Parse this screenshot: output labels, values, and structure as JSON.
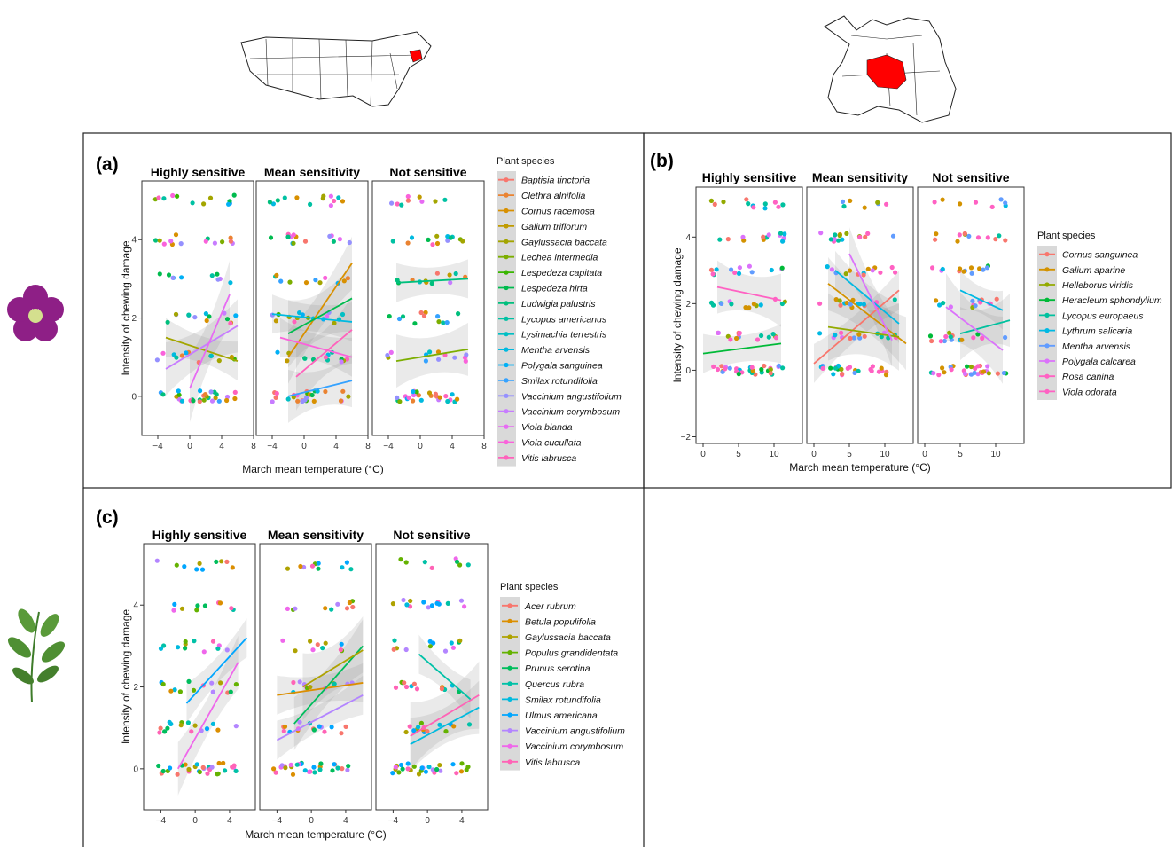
{
  "chart_data": [
    {
      "type": "scatter",
      "panel_label": "(a)",
      "facets": [
        "Highly sensitive",
        "Mean sensitivity",
        "Not sensitive"
      ],
      "xlabel": "March mean temperature (°C)",
      "ylabel": "Intensity of chewing damage",
      "xlim": [
        -6,
        8
      ],
      "ylim": [
        -1,
        5.5
      ],
      "x_ticks": [
        -4,
        0,
        4,
        8
      ],
      "y_ticks": [
        0,
        2,
        4
      ],
      "legend_title": "Plant species",
      "legend_position": "right",
      "grid": false,
      "series": [
        {
          "name": "Baptisia tinctoria",
          "color": "#F8766D"
        },
        {
          "name": "Clethra alnifolia",
          "color": "#EA8331"
        },
        {
          "name": "Cornus racemosa",
          "color": "#D89000"
        },
        {
          "name": "Galium triflorum",
          "color": "#C09B00"
        },
        {
          "name": "Gaylussacia baccata",
          "color": "#A3A500"
        },
        {
          "name": "Lechea intermedia",
          "color": "#7CAE00"
        },
        {
          "name": "Lespedeza capitata",
          "color": "#39B600"
        },
        {
          "name": "Lespedeza hirta",
          "color": "#00BB4E"
        },
        {
          "name": "Ludwigia palustris",
          "color": "#00BF7D"
        },
        {
          "name": "Lycopus americanus",
          "color": "#00C1A3"
        },
        {
          "name": "Lysimachia terrestris",
          "color": "#00BFC4"
        },
        {
          "name": "Mentha arvensis",
          "color": "#00BAE0"
        },
        {
          "name": "Polygala sanguinea",
          "color": "#00B0F6"
        },
        {
          "name": "Smilax rotundifolia",
          "color": "#35A2FF"
        },
        {
          "name": "Vaccinium angustifolium",
          "color": "#9590FF"
        },
        {
          "name": "Vaccinium corymbosum",
          "color": "#C77CFF"
        },
        {
          "name": "Viola blanda",
          "color": "#E76BF3"
        },
        {
          "name": "Viola cucullata",
          "color": "#FA62DB"
        },
        {
          "name": "Vitis labrusca",
          "color": "#FF62BC"
        }
      ],
      "trend_lines": [
        {
          "facet": 0,
          "color": "#A3A500",
          "from": [
            -3,
            1.5
          ],
          "to": [
            6,
            0.9
          ]
        },
        {
          "facet": 0,
          "color": "#C77CFF",
          "from": [
            -3,
            0.7
          ],
          "to": [
            6,
            1.8
          ]
        },
        {
          "facet": 0,
          "color": "#E76BF3",
          "from": [
            0,
            0.2
          ],
          "to": [
            5,
            2.6
          ]
        },
        {
          "facet": 1,
          "color": "#00BAE0",
          "from": [
            -4,
            2.1
          ],
          "to": [
            6,
            1.9
          ]
        },
        {
          "facet": 1,
          "color": "#D89000",
          "from": [
            -2,
            1.0
          ],
          "to": [
            6,
            3.4
          ]
        },
        {
          "facet": 1,
          "color": "#00BB4E",
          "from": [
            -2,
            1.6
          ],
          "to": [
            6,
            2.5
          ]
        },
        {
          "facet": 1,
          "color": "#FA62DB",
          "from": [
            -3,
            1.5
          ],
          "to": [
            6,
            1.0
          ]
        },
        {
          "facet": 1,
          "color": "#35A2FF",
          "from": [
            -2,
            0.0
          ],
          "to": [
            6,
            0.4
          ]
        },
        {
          "facet": 1,
          "color": "#FF62BC",
          "from": [
            -1,
            0.5
          ],
          "to": [
            6,
            1.7
          ]
        },
        {
          "facet": 2,
          "color": "#00BF7D",
          "from": [
            -3,
            2.9
          ],
          "to": [
            6,
            3.0
          ]
        },
        {
          "facet": 2,
          "color": "#7CAE00",
          "from": [
            -3,
            0.9
          ],
          "to": [
            6,
            1.2
          ]
        }
      ]
    },
    {
      "type": "scatter",
      "panel_label": "(b)",
      "facets": [
        "Highly sensitive",
        "Mean sensitivity",
        "Not sensitive"
      ],
      "xlabel": "March mean temperature (°C)",
      "ylabel": "Intensity of chewing damage",
      "xlim": [
        -1,
        14
      ],
      "ylim": [
        -2.2,
        5.5
      ],
      "x_ticks": [
        0,
        5,
        10
      ],
      "y_ticks": [
        -2,
        0,
        2,
        4
      ],
      "legend_title": "Plant species",
      "legend_position": "right",
      "grid": false,
      "series": [
        {
          "name": "Cornus sanguinea",
          "color": "#F8766D"
        },
        {
          "name": "Galium aparine",
          "color": "#D39200"
        },
        {
          "name": "Helleborus viridis",
          "color": "#93AA00"
        },
        {
          "name": "Heracleum sphondylium",
          "color": "#00BA38"
        },
        {
          "name": "Lycopus europaeus",
          "color": "#00C19F"
        },
        {
          "name": "Lythrum salicaria",
          "color": "#00B9E3"
        },
        {
          "name": "Mentha arvensis",
          "color": "#619CFF"
        },
        {
          "name": "Polygala calcarea",
          "color": "#DB72FB"
        },
        {
          "name": "Rosa canina",
          "color": "#FF61C3"
        },
        {
          "name": "Viola odorata",
          "color": "#FF61C3"
        }
      ],
      "trend_lines": [
        {
          "facet": 0,
          "color": "#00BA38",
          "from": [
            0,
            0.5
          ],
          "to": [
            11,
            0.8
          ]
        },
        {
          "facet": 0,
          "color": "#FF61C3",
          "from": [
            2,
            2.5
          ],
          "to": [
            11,
            2.1
          ]
        },
        {
          "facet": 1,
          "color": "#F8766D",
          "from": [
            0,
            0.2
          ],
          "to": [
            12,
            2.4
          ]
        },
        {
          "facet": 1,
          "color": "#D39200",
          "from": [
            2,
            2.6
          ],
          "to": [
            13,
            0.8
          ]
        },
        {
          "facet": 1,
          "color": "#93AA00",
          "from": [
            2,
            1.3
          ],
          "to": [
            12,
            1.0
          ]
        },
        {
          "facet": 1,
          "color": "#00B9E3",
          "from": [
            3,
            3.0
          ],
          "to": [
            12,
            1.4
          ]
        },
        {
          "facet": 1,
          "color": "#DB72FB",
          "from": [
            5,
            3.5
          ],
          "to": [
            11,
            0.9
          ]
        },
        {
          "facet": 2,
          "color": "#00B9E3",
          "from": [
            5,
            2.4
          ],
          "to": [
            11,
            1.8
          ]
        },
        {
          "facet": 2,
          "color": "#00C19F",
          "from": [
            5,
            1.1
          ],
          "to": [
            12,
            1.5
          ]
        },
        {
          "facet": 2,
          "color": "#DB72FB",
          "from": [
            3,
            1.9
          ],
          "to": [
            11,
            0.6
          ]
        }
      ]
    },
    {
      "type": "scatter",
      "panel_label": "(c)",
      "facets": [
        "Highly sensitive",
        "Mean sensitivity",
        "Not sensitive"
      ],
      "xlabel": "March mean temperature (°C)",
      "ylabel": "Intensity of chewing damage",
      "xlim": [
        -6,
        7
      ],
      "ylim": [
        -1,
        5.5
      ],
      "x_ticks": [
        -4,
        0,
        4
      ],
      "y_ticks": [
        0,
        2,
        4
      ],
      "legend_title": "Plant species",
      "legend_position": "right",
      "grid": false,
      "series": [
        {
          "name": "Acer rubrum",
          "color": "#F8766D"
        },
        {
          "name": "Betula populifolia",
          "color": "#DB8E00"
        },
        {
          "name": "Gaylussacia baccata",
          "color": "#AEA200"
        },
        {
          "name": "Populus grandidentata",
          "color": "#64B200"
        },
        {
          "name": "Prunus serotina",
          "color": "#00BD5C"
        },
        {
          "name": "Quercus rubra",
          "color": "#00C1A7"
        },
        {
          "name": "Smilax rotundifolia",
          "color": "#00BADE"
        },
        {
          "name": "Ulmus americana",
          "color": "#00A6FF"
        },
        {
          "name": "Vaccinium angustifolium",
          "color": "#B385FF"
        },
        {
          "name": "Vaccinium corymbosum",
          "color": "#EF67EB"
        },
        {
          "name": "Vitis labrusca",
          "color": "#FF63B6"
        }
      ],
      "trend_lines": [
        {
          "facet": 0,
          "color": "#00A6FF",
          "from": [
            -1,
            1.6
          ],
          "to": [
            6,
            3.2
          ]
        },
        {
          "facet": 0,
          "color": "#EF67EB",
          "from": [
            -2,
            0.0
          ],
          "to": [
            5,
            2.6
          ]
        },
        {
          "facet": 1,
          "color": "#DB8E00",
          "from": [
            -4,
            1.8
          ],
          "to": [
            6,
            2.1
          ]
        },
        {
          "facet": 1,
          "color": "#00BD5C",
          "from": [
            -2,
            1.1
          ],
          "to": [
            6,
            3.0
          ]
        },
        {
          "facet": 1,
          "color": "#AEA200",
          "from": [
            -1,
            2.0
          ],
          "to": [
            6,
            2.9
          ]
        },
        {
          "facet": 1,
          "color": "#B385FF",
          "from": [
            -4,
            0.7
          ],
          "to": [
            6,
            1.8
          ]
        },
        {
          "facet": 2,
          "color": "#00C1A7",
          "from": [
            -1,
            2.8
          ],
          "to": [
            5,
            1.7
          ]
        },
        {
          "facet": 2,
          "color": "#00BADE",
          "from": [
            -2,
            0.6
          ],
          "to": [
            6,
            1.5
          ]
        },
        {
          "facet": 2,
          "color": "#FF63B6",
          "from": [
            -2,
            0.8
          ],
          "to": [
            6,
            1.8
          ]
        }
      ]
    }
  ]
}
